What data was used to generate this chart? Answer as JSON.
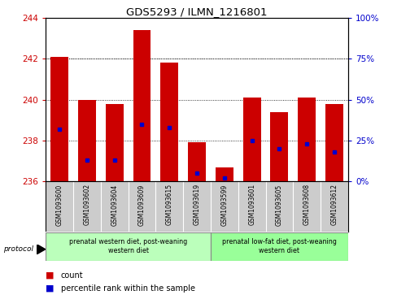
{
  "title": "GDS5293 / ILMN_1216801",
  "samples": [
    "GSM1093600",
    "GSM1093602",
    "GSM1093604",
    "GSM1093609",
    "GSM1093615",
    "GSM1093619",
    "GSM1093599",
    "GSM1093601",
    "GSM1093605",
    "GSM1093608",
    "GSM1093612"
  ],
  "bar_values": [
    242.1,
    240.0,
    239.8,
    243.4,
    241.8,
    237.9,
    236.7,
    240.1,
    239.4,
    240.1,
    239.8
  ],
  "bar_base": 236.0,
  "percentile_values": [
    32,
    13,
    13,
    35,
    33,
    5,
    2,
    25,
    20,
    23,
    18
  ],
  "ylim_left": [
    236,
    244
  ],
  "yticks_left": [
    236,
    238,
    240,
    242,
    244
  ],
  "ylim_right": [
    0,
    100
  ],
  "yticks_right": [
    0,
    25,
    50,
    75,
    100
  ],
  "bar_color": "#cc0000",
  "dot_color": "#0000cc",
  "bar_width": 0.65,
  "groups": [
    {
      "label": "prenatal western diet, post-weaning\nwestern diet",
      "indices": [
        0,
        1,
        2,
        3,
        4,
        5
      ],
      "color": "#bbffbb"
    },
    {
      "label": "prenatal low-fat diet, post-weaning\nwestern diet",
      "indices": [
        6,
        7,
        8,
        9,
        10
      ],
      "color": "#99ff99"
    }
  ],
  "protocol_label": "protocol",
  "legend_count_label": "count",
  "legend_percentile_label": "percentile rank within the sample",
  "tick_color_left": "#cc0000",
  "tick_color_right": "#0000cc",
  "background_color": "#ffffff",
  "xlabel_area_color": "#cccccc"
}
